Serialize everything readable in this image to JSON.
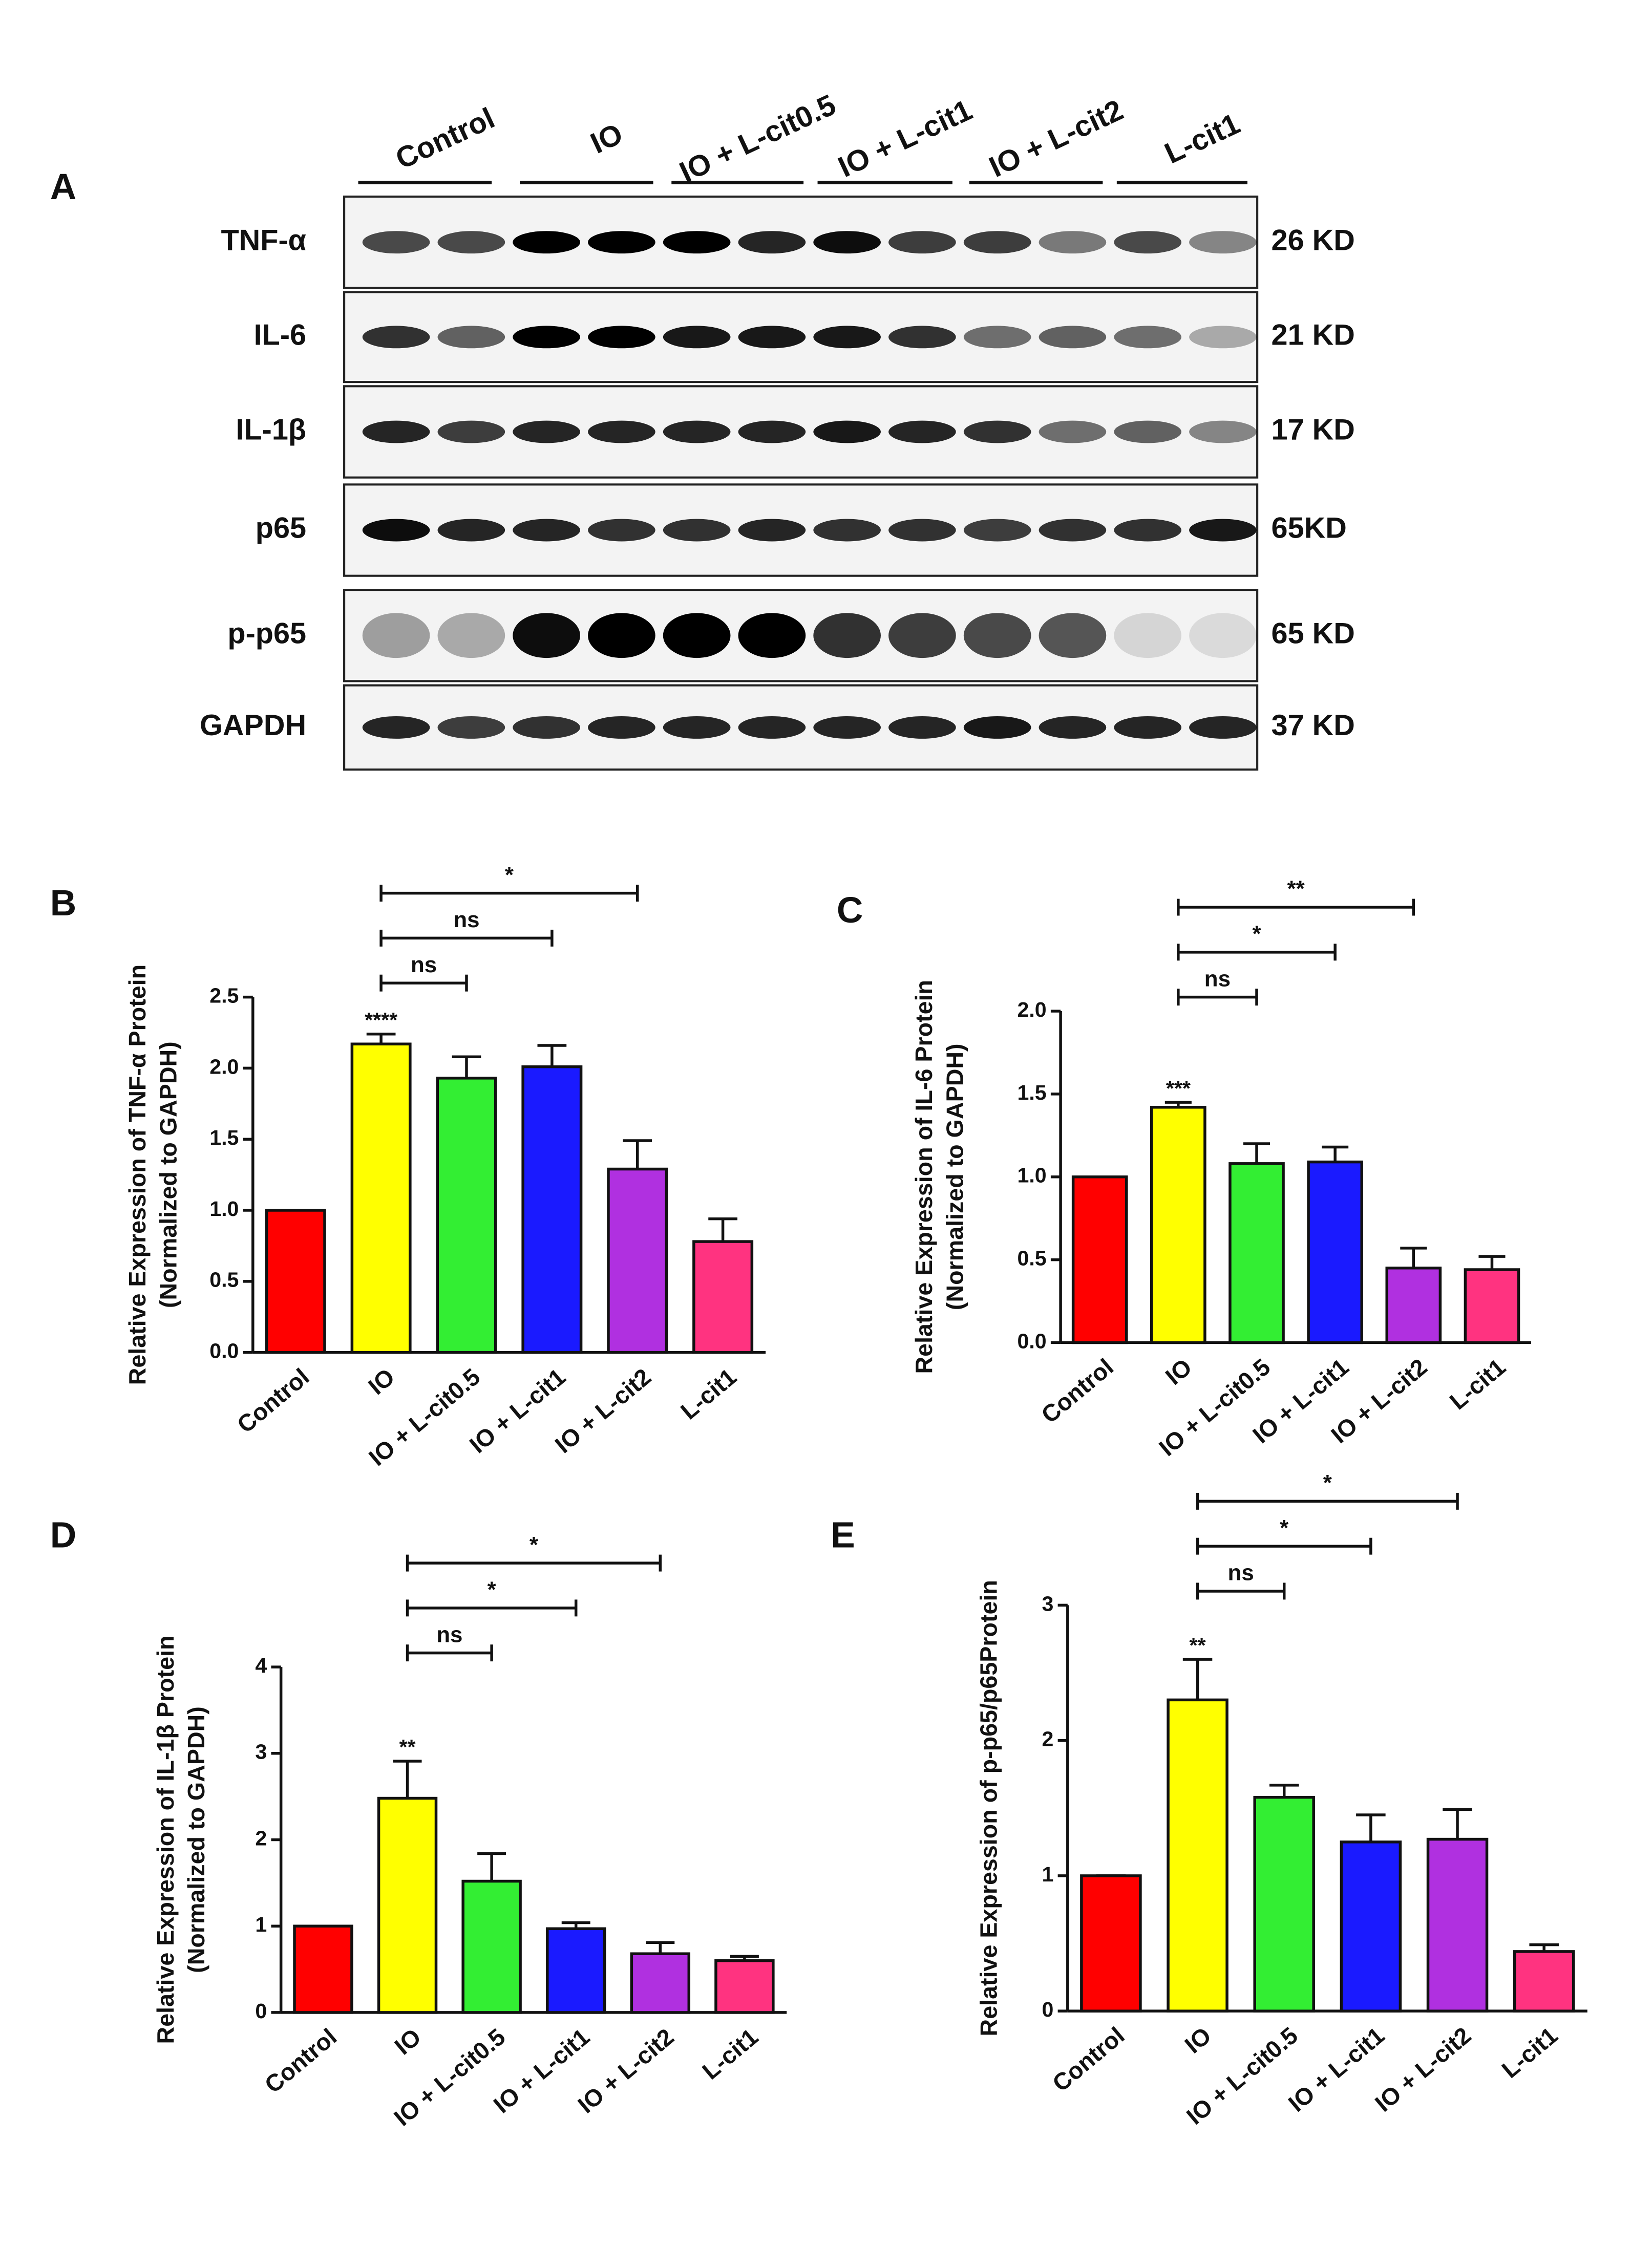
{
  "blot": {
    "panel": "A",
    "groups": [
      "Control",
      "IO",
      "IO + L-cit0.5",
      "IO + L-cit1",
      "IO + L-cit2",
      "L-cit1"
    ],
    "rows": [
      {
        "protein": "TNF-α",
        "size": "26 KD"
      },
      {
        "protein": "IL-6",
        "size": "21 KD"
      },
      {
        "protein": "IL-1β",
        "size": "17 KD"
      },
      {
        "protein": "p65",
        "size": "65KD"
      },
      {
        "protein": "p-p65",
        "size": "65 KD"
      },
      {
        "protein": "GAPDH",
        "size": "37 KD"
      }
    ]
  },
  "chart_data": [
    {
      "type": "bar",
      "panel": "B",
      "ylabel": [
        "Relative Expression of TNF-α Protein",
        "(Normalized to GAPDH)"
      ],
      "categories": [
        "Control",
        "IO",
        "IO + L-cit0.5",
        "IO + L-cit1",
        "IO + L-cit2",
        "L-cit1"
      ],
      "values": [
        1.0,
        2.17,
        1.93,
        2.01,
        1.29,
        0.78
      ],
      "errors": [
        0,
        0.07,
        0.15,
        0.15,
        0.2,
        0.16
      ],
      "colors": [
        "#ff0000",
        "#ffff00",
        "#33ee33",
        "#1a1aff",
        "#b030e0",
        "#ff3380"
      ],
      "ylim": [
        0,
        2.5
      ],
      "yticks": [
        {
          "value": 0,
          "label": "0.0"
        },
        0.5,
        {
          "value": 1,
          "label": "1.0"
        },
        1.5,
        {
          "value": 2,
          "label": "2.0"
        },
        2.5
      ],
      "bar_annotations": [
        {
          "category": "IO",
          "label": "****"
        }
      ],
      "comparisons": [
        {
          "from": "IO",
          "to": "IO + L-cit0.5",
          "label": "ns"
        },
        {
          "from": "IO",
          "to": "IO + L-cit1",
          "label": "ns"
        },
        {
          "from": "IO",
          "to": "IO + L-cit2",
          "label": "*"
        }
      ]
    },
    {
      "type": "bar",
      "panel": "C",
      "ylabel": [
        "Relative Expression of IL-6 Protein",
        "(Normalized to GAPDH)"
      ],
      "categories": [
        "Control",
        "IO",
        "IO + L-cit0.5",
        "IO + L-cit1",
        "IO + L-cit2",
        "L-cit1"
      ],
      "values": [
        1.0,
        1.42,
        1.08,
        1.09,
        0.45,
        0.44
      ],
      "errors": [
        0,
        0.03,
        0.12,
        0.09,
        0.12,
        0.08
      ],
      "colors": [
        "#ff0000",
        "#ffff00",
        "#33ee33",
        "#1a1aff",
        "#b030e0",
        "#ff3380"
      ],
      "ylim": [
        0,
        2
      ],
      "yticks": [
        {
          "value": 0,
          "label": "0.0"
        },
        0.5,
        {
          "value": 1,
          "label": "1.0"
        },
        1.5,
        {
          "value": 2,
          "label": "2.0"
        }
      ],
      "bar_annotations": [
        {
          "category": "IO",
          "label": "***"
        }
      ],
      "comparisons": [
        {
          "from": "IO",
          "to": "IO + L-cit0.5",
          "label": "ns"
        },
        {
          "from": "IO",
          "to": "IO + L-cit1",
          "label": "*"
        },
        {
          "from": "IO",
          "to": "IO + L-cit2",
          "label": "**"
        }
      ]
    },
    {
      "type": "bar",
      "panel": "D",
      "ylabel": [
        "Relative Expression of IL-1β Protein",
        "(Normalized to GAPDH)"
      ],
      "categories": [
        "Control",
        "IO",
        "IO + L-cit0.5",
        "IO + L-cit1",
        "IO + L-cit2",
        "L-cit1"
      ],
      "values": [
        1.0,
        2.48,
        1.52,
        0.97,
        0.68,
        0.6
      ],
      "errors": [
        0,
        0.43,
        0.32,
        0.07,
        0.13,
        0.05
      ],
      "colors": [
        "#ff0000",
        "#ffff00",
        "#33ee33",
        "#1a1aff",
        "#b030e0",
        "#ff3380"
      ],
      "ylim": [
        0,
        4
      ],
      "yticks": [
        0,
        1,
        2,
        3,
        4
      ],
      "bar_annotations": [
        {
          "category": "IO",
          "label": "**"
        }
      ],
      "comparisons": [
        {
          "from": "IO",
          "to": "IO + L-cit0.5",
          "label": "ns"
        },
        {
          "from": "IO",
          "to": "IO + L-cit1",
          "label": "*"
        },
        {
          "from": "IO",
          "to": "IO + L-cit2",
          "label": "*"
        }
      ]
    },
    {
      "type": "bar",
      "panel": "E",
      "ylabel": [
        "Relative Expression of p-p65/p65Protein"
      ],
      "categories": [
        "Control",
        "IO",
        "IO + L-cit0.5",
        "IO + L-cit1",
        "IO + L-cit2",
        "L-cit1"
      ],
      "values": [
        1.0,
        2.3,
        1.58,
        1.25,
        1.27,
        0.44
      ],
      "errors": [
        0,
        0.3,
        0.09,
        0.2,
        0.22,
        0.05
      ],
      "colors": [
        "#ff0000",
        "#ffff00",
        "#33ee33",
        "#1a1aff",
        "#b030e0",
        "#ff3380"
      ],
      "ylim": [
        0,
        3
      ],
      "yticks": [
        0,
        1,
        2,
        3
      ],
      "bar_annotations": [
        {
          "category": "IO",
          "label": "**"
        }
      ],
      "comparisons": [
        {
          "from": "IO",
          "to": "IO + L-cit0.5",
          "label": "ns"
        },
        {
          "from": "IO",
          "to": "IO + L-cit1",
          "label": "*"
        },
        {
          "from": "IO",
          "to": "IO + L-cit2",
          "label": "*"
        }
      ]
    }
  ]
}
